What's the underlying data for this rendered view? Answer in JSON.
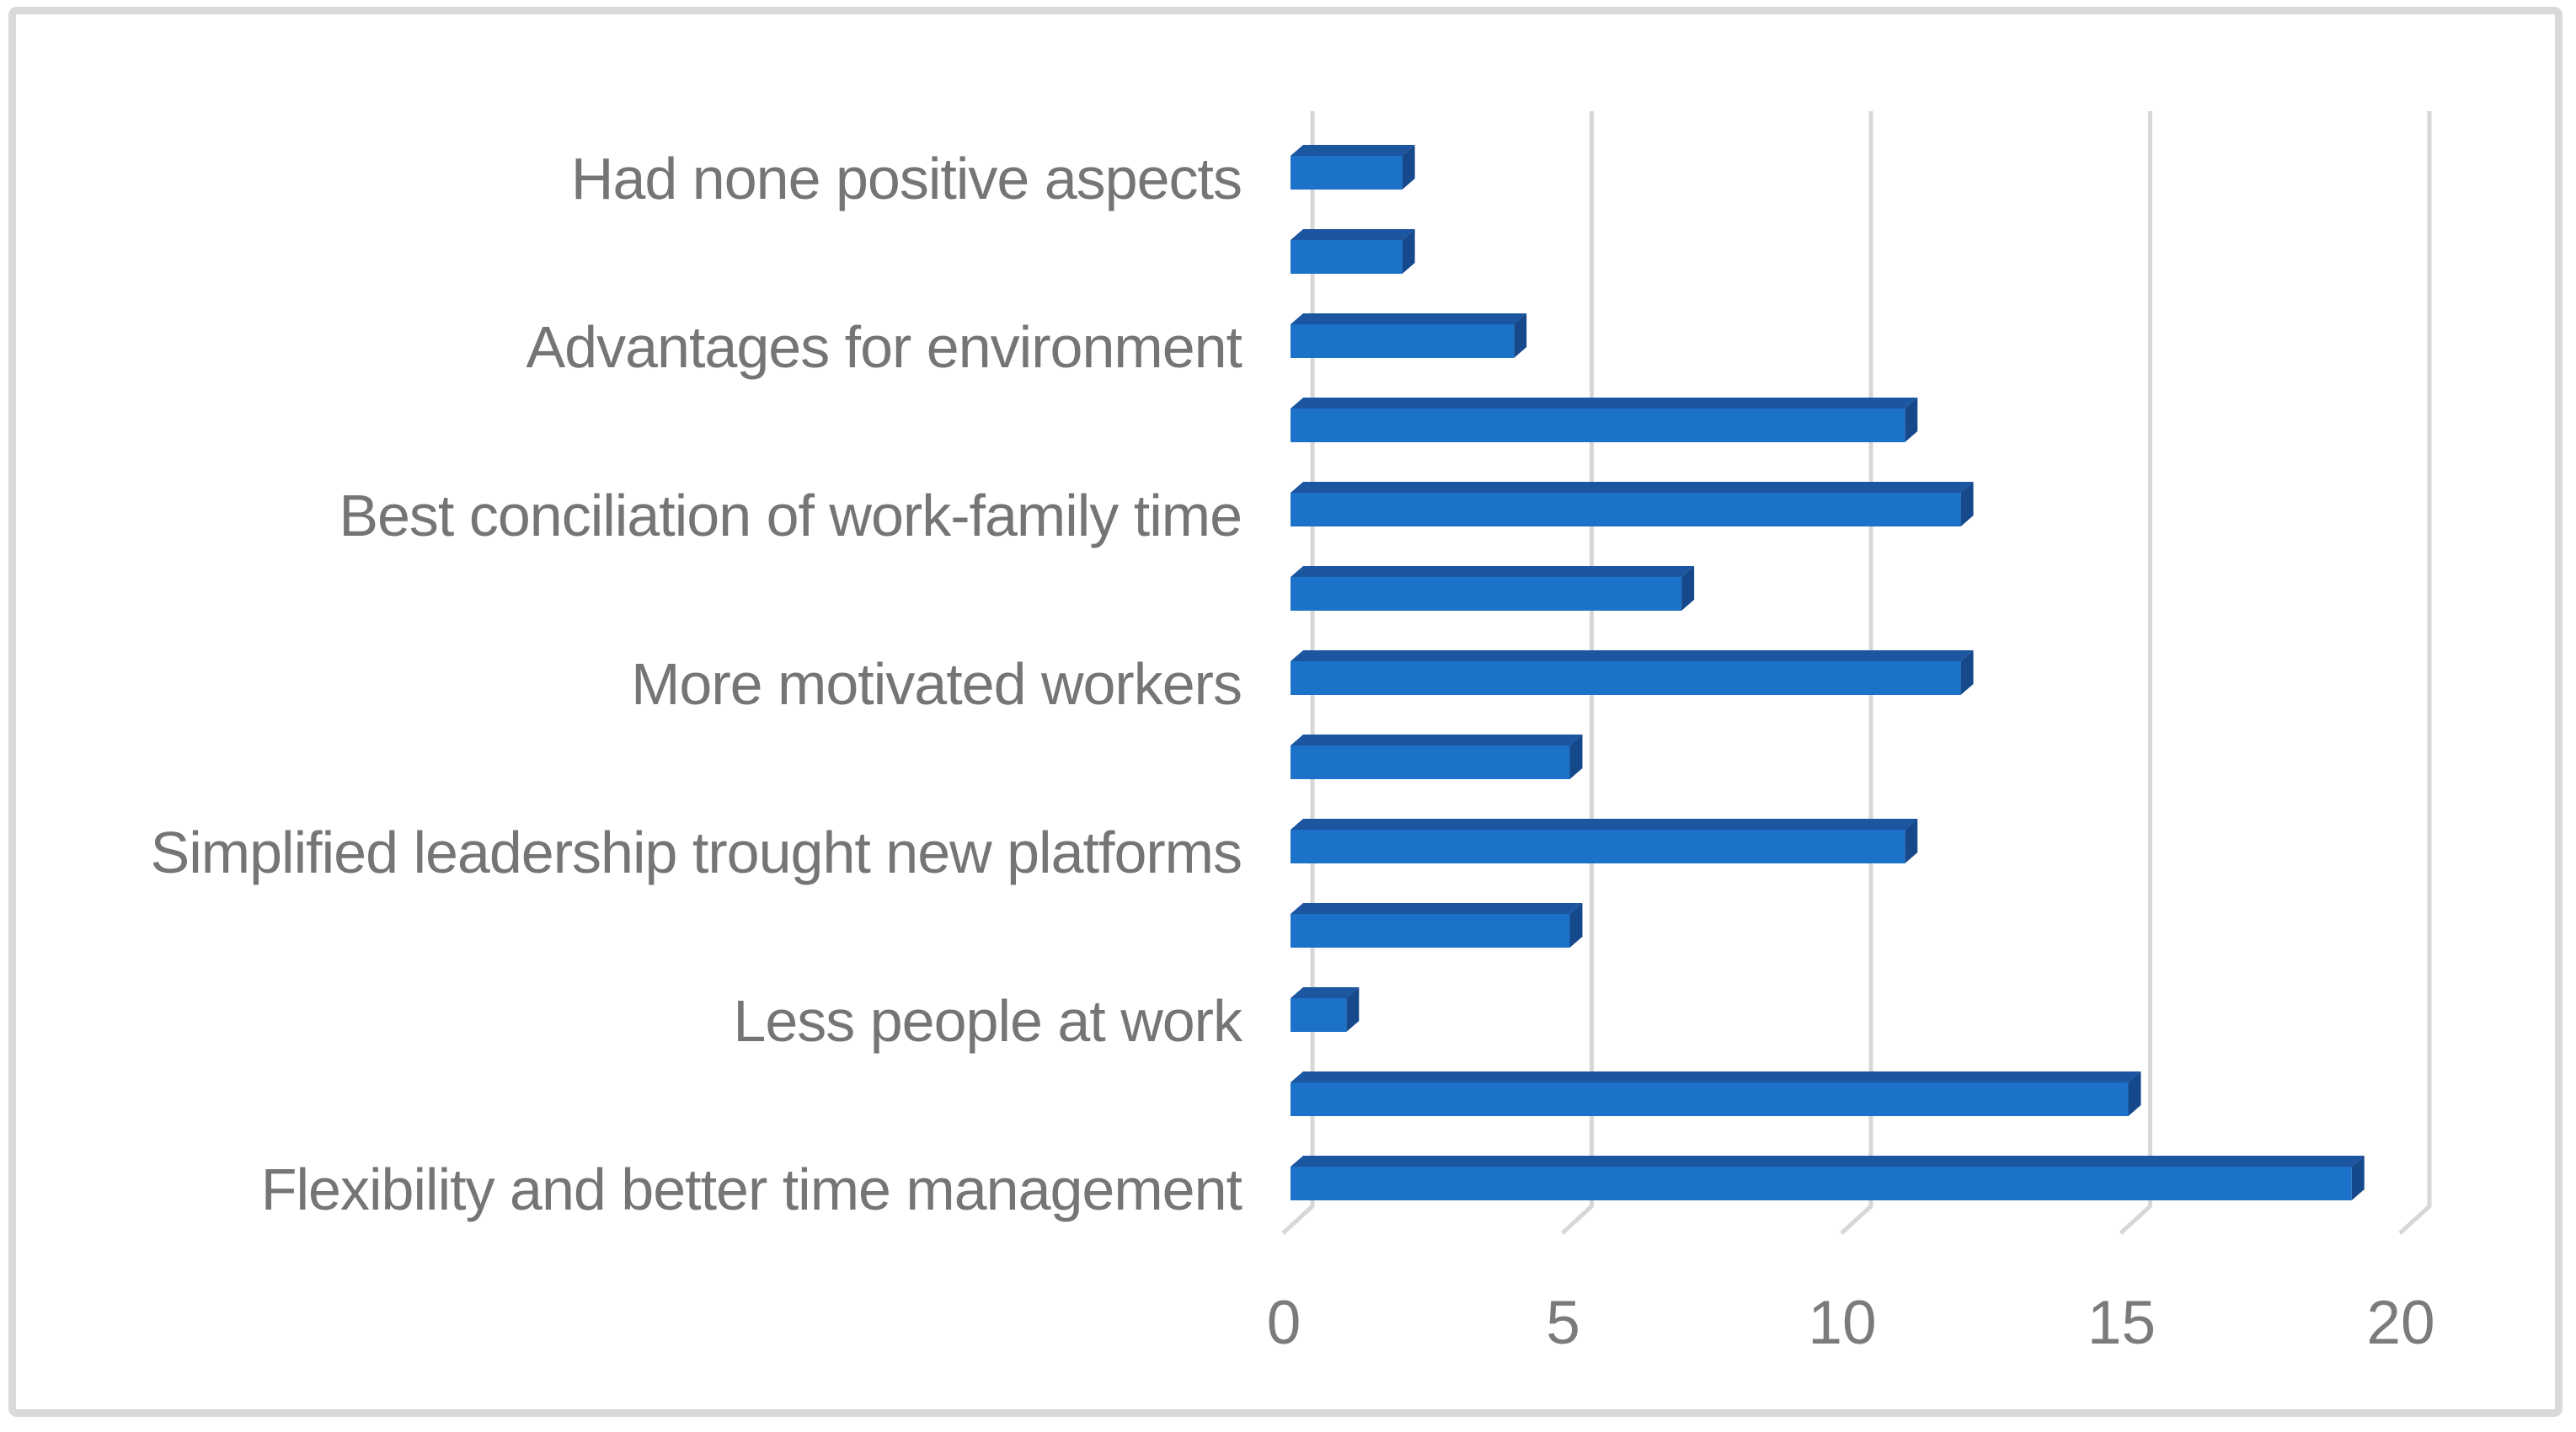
{
  "figure": {
    "background": "#FFFFFF",
    "border_color": "#D9D9D9"
  },
  "chart_data": {
    "type": "bar",
    "orientation": "horizontal",
    "title": "",
    "xlabel": "",
    "ylabel": "",
    "categories": [
      "Had none positive aspects",
      "",
      "Advantages for environment",
      "",
      "Best conciliation of work-family time",
      "",
      "More motivated workers",
      "",
      "Simplified leadership trought new platforms",
      "",
      "Less people at work",
      "",
      "Flexibility and better time management"
    ],
    "values": [
      2,
      2,
      4,
      11,
      12,
      7,
      12,
      5,
      11,
      5,
      1,
      15,
      19
    ],
    "x_ticks": [
      0,
      5,
      10,
      15,
      20
    ],
    "xlim": [
      0,
      22.5
    ],
    "grid": true,
    "legend": "none",
    "style": "3d-bevel",
    "bar_color": "#1B72C8",
    "bar_top_color": "#1C55A0",
    "bar_side_color": "#16498C",
    "gridline_color": "#D7D7D7",
    "category_label_color": "#757575",
    "tick_label_color": "#7B7B7B"
  }
}
